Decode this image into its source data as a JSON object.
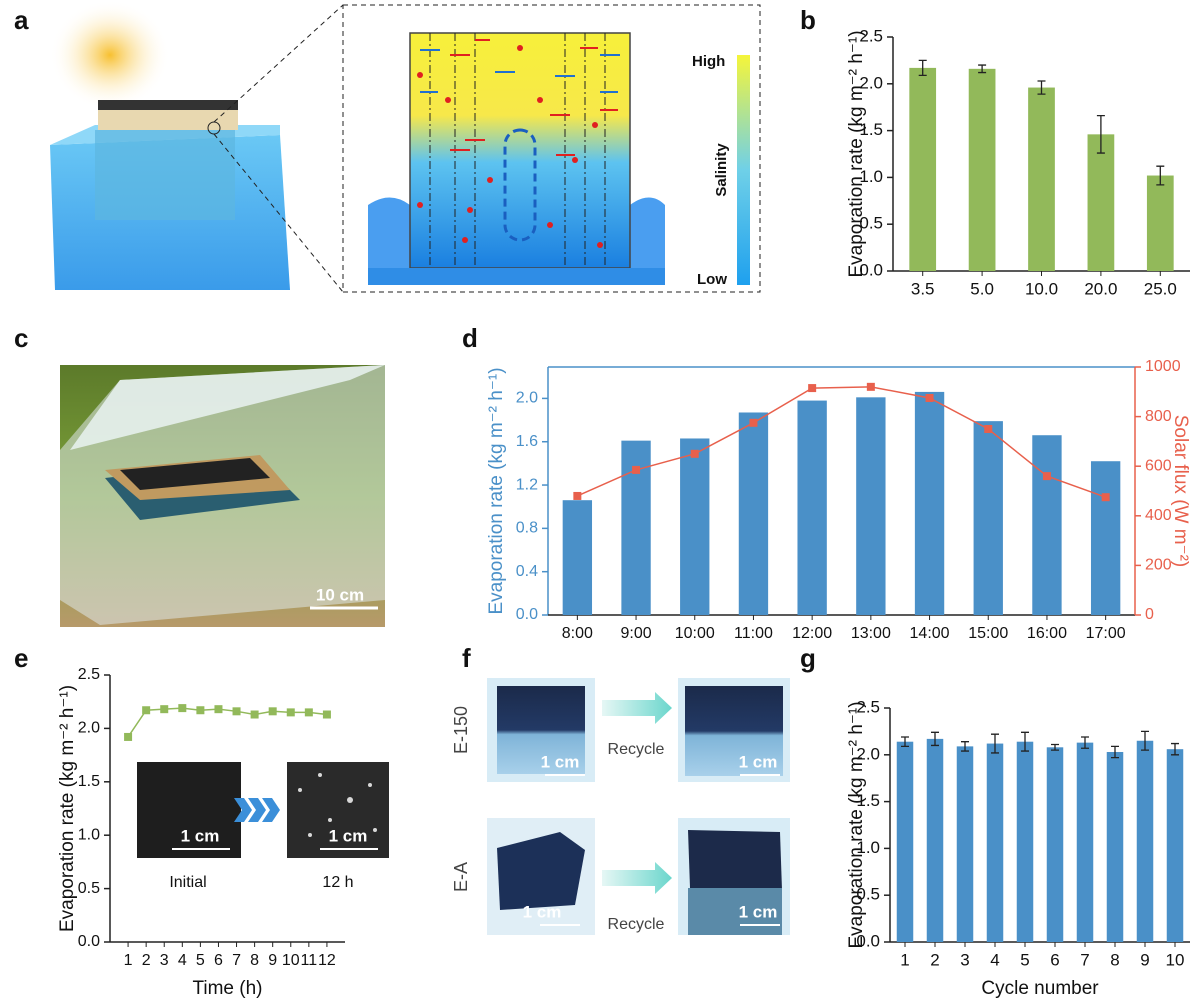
{
  "panel_labels": [
    "a",
    "b",
    "c",
    "d",
    "e",
    "f",
    "g"
  ],
  "panel_a": {
    "legend_high": "High",
    "legend_low": "Low",
    "legend_title": "Salinity"
  },
  "panel_c": {
    "scale_bar": "10 cm"
  },
  "panel_e_inset": {
    "before": "Initial",
    "after": "12 h",
    "scale_bars": [
      "1 cm",
      "1 cm"
    ]
  },
  "panel_f": {
    "rows": [
      {
        "label": "E-150",
        "arrow": "Recycle",
        "scale_bars": [
          "1 cm",
          "1 cm"
        ]
      },
      {
        "label": "E-A",
        "arrow": "Recycle",
        "scale_bars": [
          "1 cm",
          "1 cm"
        ]
      }
    ]
  },
  "chart_data": [
    {
      "type": "bar",
      "ylabel": "Evaporation rate (kg m⁻² h⁻¹)",
      "categories": [
        "3.5",
        "5.0",
        "10.0",
        "20.0",
        "25.0"
      ],
      "series": [
        {
          "color": "#92b95a",
          "values": [
            2.17,
            2.16,
            1.96,
            1.46,
            1.02
          ],
          "errors": [
            0.08,
            0.04,
            0.07,
            0.2,
            0.1
          ]
        }
      ],
      "ylim": [
        0,
        2.5
      ],
      "yticks": [
        {
          "value": 0,
          "label": "0.0"
        },
        0.5,
        {
          "value": 1,
          "label": "1.0"
        },
        1.5,
        {
          "value": 2,
          "label": "2.0"
        },
        2.5
      ]
    },
    {
      "type": "bar",
      "ylabel": "Evaporation rate (kg m⁻² h⁻¹)",
      "y2label": "Solar flux (W m⁻²)",
      "box": true,
      "categories": [
        "8:00",
        "9:00",
        "10:00",
        "11:00",
        "12:00",
        "13:00",
        "14:00",
        "15:00",
        "16:00",
        "17:00"
      ],
      "series": [
        {
          "type": "bar",
          "color": "#4a90c8",
          "values": [
            1.06,
            1.61,
            1.63,
            1.87,
            1.98,
            2.01,
            2.06,
            1.79,
            1.66,
            1.42
          ]
        },
        {
          "type": "line",
          "axis": "y2",
          "color": "#e8604c",
          "values": [
            480,
            585,
            650,
            775,
            915,
            920,
            875,
            750,
            560,
            475
          ]
        }
      ],
      "ylim": [
        0,
        2.29
      ],
      "yticks": [
        {
          "value": 0,
          "label": "0.0"
        },
        0.4,
        0.8,
        1.2,
        1.6,
        {
          "value": 2,
          "label": "2.0"
        }
      ],
      "y2lim": [
        0,
        1000
      ],
      "y2ticks": [
        0,
        200,
        400,
        600,
        800,
        1000
      ]
    },
    {
      "type": "line",
      "ylabel": "Evaporation rate (kg m⁻² h⁻¹)",
      "xlabel": "Time (h)",
      "x": [
        1,
        2,
        3,
        4,
        5,
        6,
        7,
        8,
        9,
        10,
        11,
        12
      ],
      "series": [
        {
          "color": "#92b95a",
          "values": [
            1.92,
            2.17,
            2.18,
            2.19,
            2.17,
            2.18,
            2.16,
            2.13,
            2.16,
            2.15,
            2.15,
            2.13
          ]
        }
      ],
      "xlim": [
        0,
        13
      ],
      "xticks": [
        1,
        2,
        3,
        4,
        5,
        6,
        7,
        8,
        9,
        10,
        11,
        12
      ],
      "ylim": [
        0,
        2.5
      ],
      "yticks": [
        {
          "value": 0,
          "label": "0.0"
        },
        0.5,
        {
          "value": 1,
          "label": "1.0"
        },
        1.5,
        {
          "value": 2,
          "label": "2.0"
        },
        2.5
      ]
    },
    {
      "type": "bar",
      "ylabel": "Evaporation rate (kg m⁻² h⁻¹)",
      "xlabel": "Cycle number",
      "categories": [
        "1",
        "2",
        "3",
        "4",
        "5",
        "6",
        "7",
        "8",
        "9",
        "10"
      ],
      "series": [
        {
          "color": "#4a90c8",
          "values": [
            2.14,
            2.17,
            2.09,
            2.12,
            2.14,
            2.08,
            2.13,
            2.03,
            2.15,
            2.06
          ],
          "errors": [
            0.05,
            0.07,
            0.05,
            0.1,
            0.1,
            0.03,
            0.06,
            0.06,
            0.1,
            0.06
          ]
        }
      ],
      "ylim": [
        0,
        2.5
      ],
      "yticks": [
        {
          "value": 0,
          "label": "0.0"
        },
        0.5,
        {
          "value": 1,
          "label": "1.0"
        },
        1.5,
        {
          "value": 2,
          "label": "2.0"
        },
        2.5
      ]
    }
  ]
}
